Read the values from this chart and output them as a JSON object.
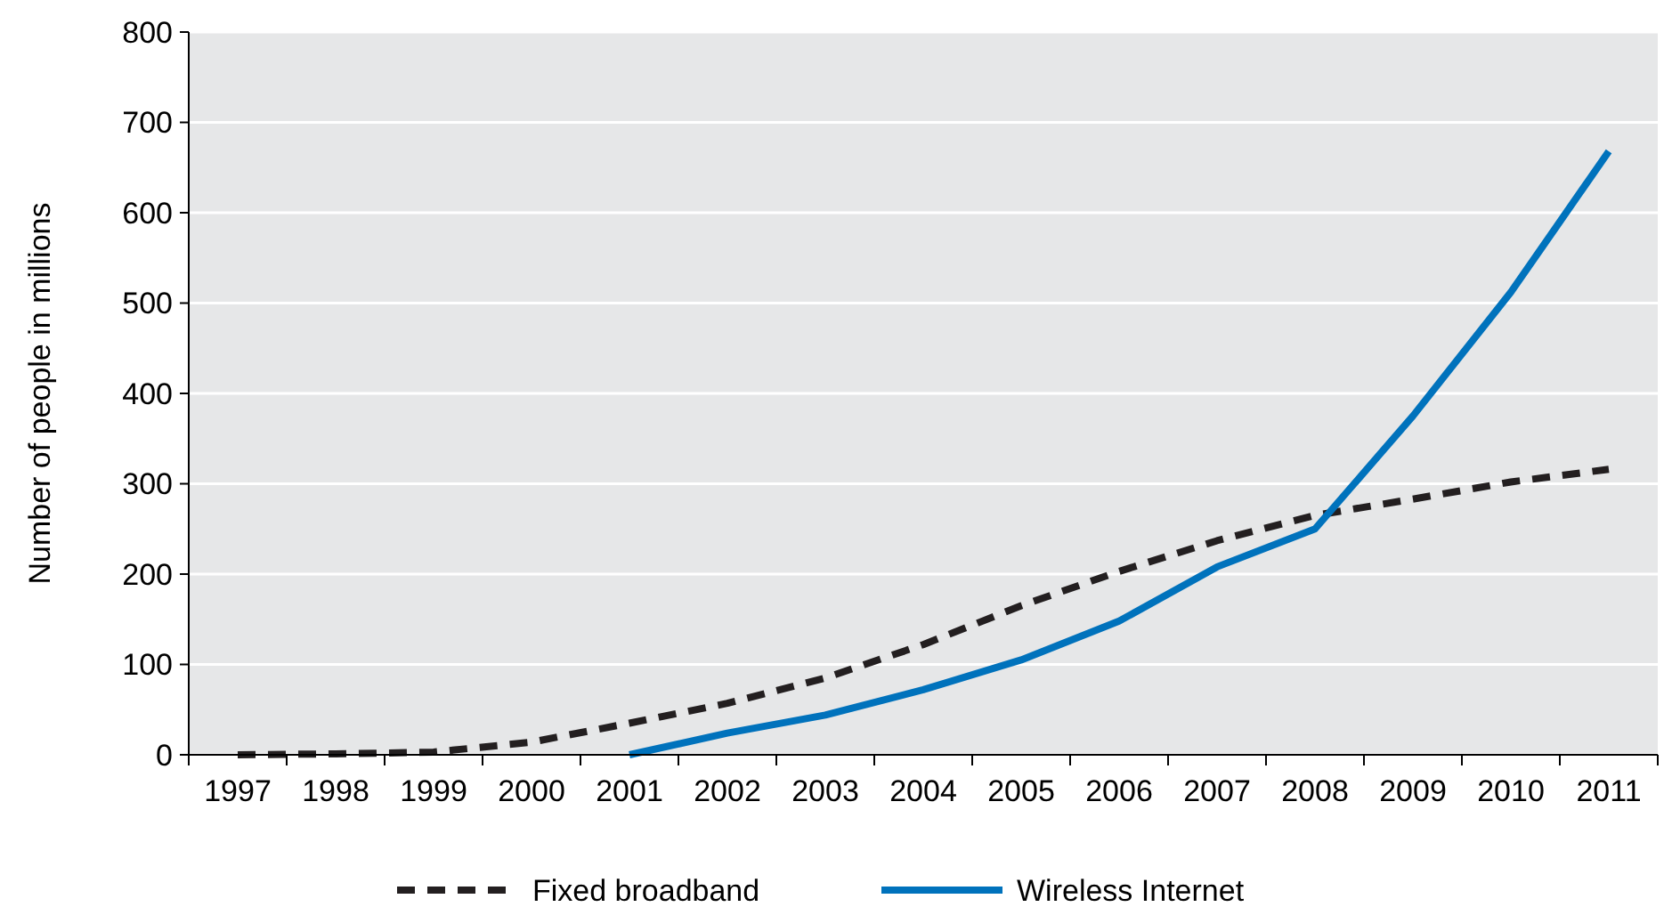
{
  "chart_data": {
    "type": "line",
    "ylabel": "Number of people in millions",
    "categories": [
      "1997",
      "1998",
      "1999",
      "2000",
      "2001",
      "2002",
      "2003",
      "2004",
      "2005",
      "2006",
      "2007",
      "2008",
      "2009",
      "2010",
      "2011"
    ],
    "series": [
      {
        "name": "Fixed broadband",
        "color": "#231f20",
        "line_style": "dashed",
        "values": [
          0,
          1,
          3,
          14,
          35,
          57,
          85,
          122,
          165,
          203,
          237,
          265,
          283,
          302,
          316
        ]
      },
      {
        "name": "Wireless Internet",
        "color": "#0072bc",
        "line_style": "solid",
        "values": [
          null,
          null,
          null,
          null,
          0,
          24,
          44,
          72,
          105,
          148,
          208,
          250,
          375,
          512,
          668
        ]
      }
    ],
    "ylim": [
      0,
      800
    ],
    "yticks": [
      0,
      100,
      200,
      300,
      400,
      500,
      600,
      700,
      800
    ],
    "grid": "y",
    "legend": "bottom",
    "marker": "none"
  }
}
